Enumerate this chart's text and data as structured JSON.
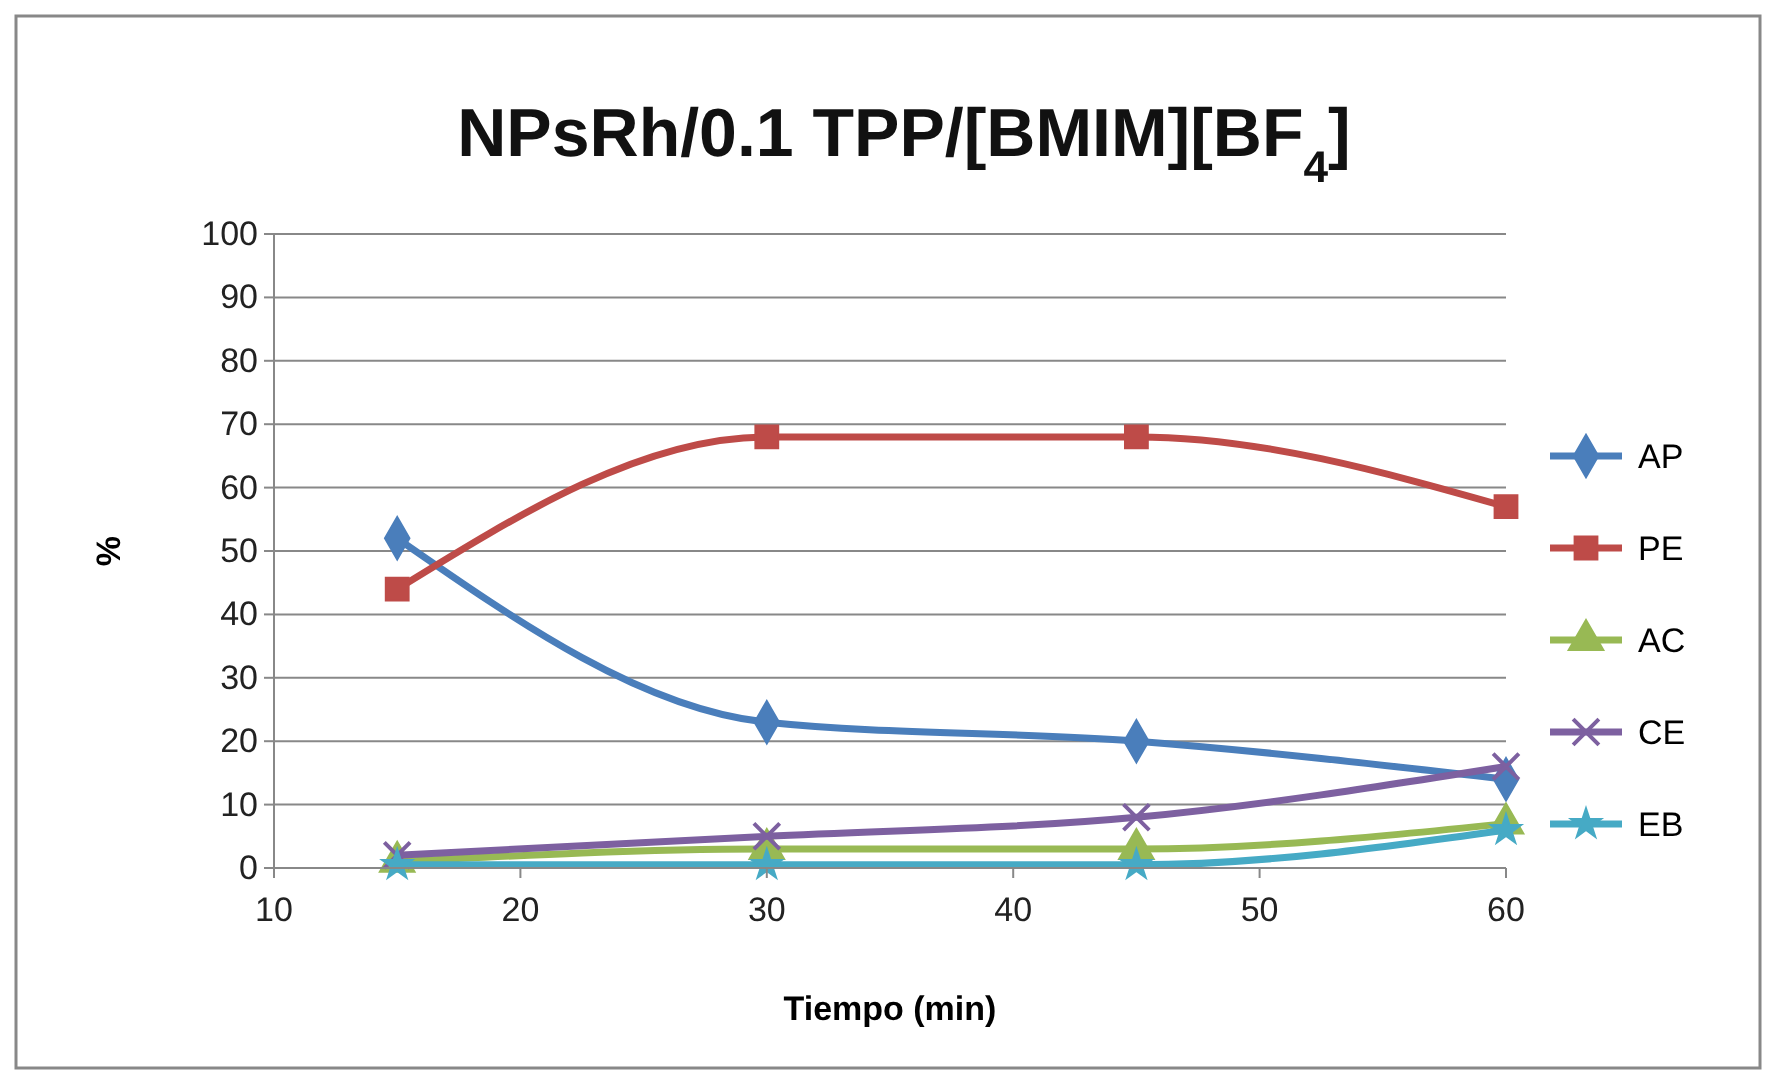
{
  "chart_data": {
    "type": "line",
    "title": "NPsRh/0.1 TPP/[BMIM][BF$_{4}$]",
    "xlabel": "Tiempo (min)",
    "ylabel": "%",
    "x": [
      15,
      30,
      45,
      60
    ],
    "xlim": [
      10,
      60
    ],
    "xticks": [
      10,
      20,
      30,
      40,
      50,
      60
    ],
    "ylim": [
      0,
      100
    ],
    "yticks": [
      0,
      10,
      20,
      30,
      40,
      50,
      60,
      70,
      80,
      90,
      100
    ],
    "grid": "y",
    "legend": "right",
    "series": [
      {
        "name": "AP",
        "color": "#4a7ebb",
        "marker": "diamond",
        "values": [
          52,
          23,
          20,
          14
        ]
      },
      {
        "name": "PE",
        "color": "#be4b48",
        "marker": "square",
        "values": [
          44,
          68,
          68,
          57
        ]
      },
      {
        "name": "AC",
        "color": "#98b954",
        "marker": "triangle",
        "values": [
          1,
          3,
          3,
          7
        ]
      },
      {
        "name": "CE",
        "color": "#7d60a0",
        "marker": "cross",
        "values": [
          2,
          5,
          8,
          16
        ]
      },
      {
        "name": "EB",
        "color": "#46aac5",
        "marker": "star",
        "values": [
          0.5,
          0.5,
          0.5,
          6
        ]
      }
    ]
  }
}
